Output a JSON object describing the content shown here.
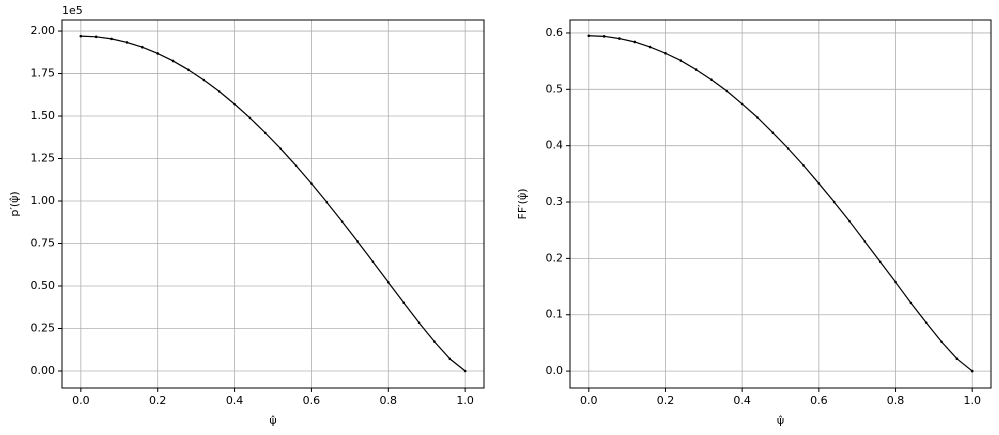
{
  "chart_data": [
    {
      "type": "line",
      "xlabel": "ψ̂",
      "ylabel": "p′(ψ̂)",
      "y_offset_label": "1e5",
      "grid": true,
      "x": [
        0,
        0.04,
        0.08,
        0.12,
        0.16,
        0.2,
        0.24,
        0.28,
        0.32,
        0.36,
        0.4,
        0.44,
        0.48,
        0.52,
        0.56,
        0.6,
        0.64,
        0.68,
        0.72,
        0.76,
        0.8,
        0.84,
        0.88,
        0.92,
        0.96,
        1
      ],
      "series": [
        {
          "color": "#000000",
          "values": [
            1.97,
            1.966,
            1.954,
            1.933,
            1.905,
            1.868,
            1.824,
            1.772,
            1.712,
            1.645,
            1.57,
            1.489,
            1.401,
            1.308,
            1.208,
            1.103,
            0.993,
            0.879,
            0.762,
            0.643,
            0.522,
            0.402,
            0.284,
            0.173,
            0.072,
            0
          ]
        }
      ],
      "xlim": [
        -0.049,
        1.049
      ],
      "ylim": [
        -0.1,
        2.065
      ],
      "xticks": [
        {
          "value": 0,
          "label": "0.0"
        },
        {
          "value": 0.2,
          "label": "0.2"
        },
        {
          "value": 0.4,
          "label": "0.4"
        },
        {
          "value": 0.6,
          "label": "0.6"
        },
        {
          "value": 0.8,
          "label": "0.8"
        },
        {
          "value": 1,
          "label": "1.0"
        }
      ],
      "yticks": [
        {
          "value": 0,
          "label": "0.00"
        },
        {
          "value": 0.25,
          "label": "0.25"
        },
        {
          "value": 0.5,
          "label": "0.50"
        },
        {
          "value": 0.75,
          "label": "0.75"
        },
        {
          "value": 1,
          "label": "1.00"
        },
        {
          "value": 1.25,
          "label": "1.25"
        },
        {
          "value": 1.5,
          "label": "1.50"
        },
        {
          "value": 1.75,
          "label": "1.75"
        },
        {
          "value": 2,
          "label": "2.00"
        }
      ]
    },
    {
      "type": "line",
      "xlabel": "ψ̂",
      "ylabel": "FF′(ψ̂)",
      "grid": true,
      "x": [
        0,
        0.04,
        0.08,
        0.12,
        0.16,
        0.2,
        0.24,
        0.28,
        0.32,
        0.36,
        0.4,
        0.44,
        0.48,
        0.52,
        0.56,
        0.6,
        0.64,
        0.68,
        0.72,
        0.76,
        0.8,
        0.84,
        0.88,
        0.92,
        0.96,
        1
      ],
      "series": [
        {
          "color": "#000000",
          "values": [
            0.595,
            0.594,
            0.59,
            0.584,
            0.575,
            0.564,
            0.551,
            0.535,
            0.517,
            0.497,
            0.474,
            0.45,
            0.423,
            0.395,
            0.365,
            0.333,
            0.3,
            0.266,
            0.23,
            0.194,
            0.158,
            0.121,
            0.086,
            0.052,
            0.022,
            0
          ]
        }
      ],
      "xlim": [
        -0.049,
        1.049
      ],
      "ylim": [
        -0.03,
        0.623
      ],
      "xticks": [
        {
          "value": 0,
          "label": "0.0"
        },
        {
          "value": 0.2,
          "label": "0.2"
        },
        {
          "value": 0.4,
          "label": "0.4"
        },
        {
          "value": 0.6,
          "label": "0.6"
        },
        {
          "value": 0.8,
          "label": "0.8"
        },
        {
          "value": 1,
          "label": "1.0"
        }
      ],
      "yticks": [
        {
          "value": 0,
          "label": "0.0"
        },
        {
          "value": 0.1,
          "label": "0.1"
        },
        {
          "value": 0.2,
          "label": "0.2"
        },
        {
          "value": 0.3,
          "label": "0.3"
        },
        {
          "value": 0.4,
          "label": "0.4"
        },
        {
          "value": 0.5,
          "label": "0.5"
        },
        {
          "value": 0.6,
          "label": "0.6"
        }
      ]
    }
  ]
}
